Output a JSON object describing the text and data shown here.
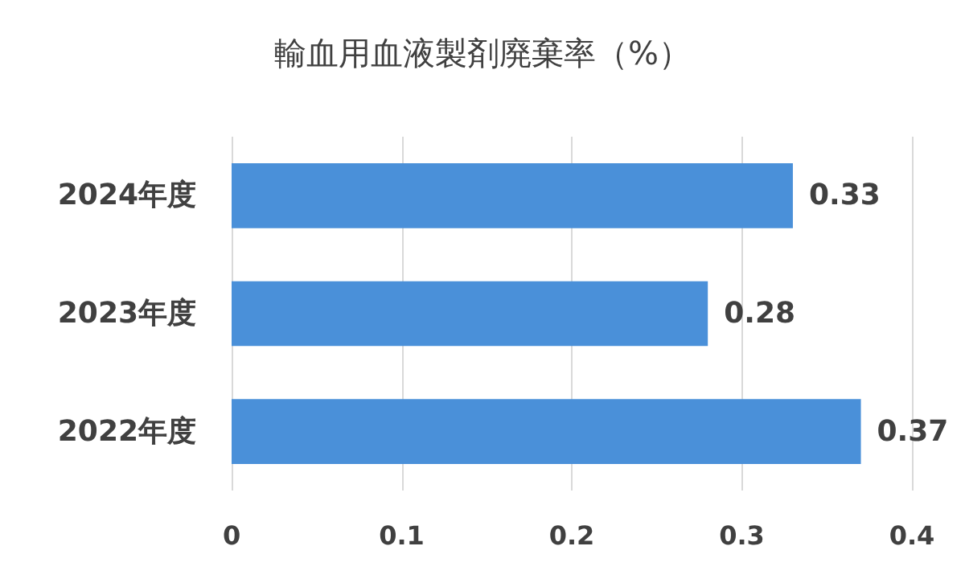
{
  "chart_data": {
    "type": "bar",
    "orientation": "horizontal",
    "title": "輸血用血液製剤廃棄率（%）",
    "categories": [
      "2024年度",
      "2023年度",
      "2022年度"
    ],
    "values": [
      0.33,
      0.28,
      0.37
    ],
    "color": "#4a90d9",
    "xlim": [
      0,
      0.4
    ],
    "xticks": [
      0,
      0.1,
      0.2,
      0.3,
      0.4
    ],
    "grid": "x",
    "data_labels": true
  }
}
